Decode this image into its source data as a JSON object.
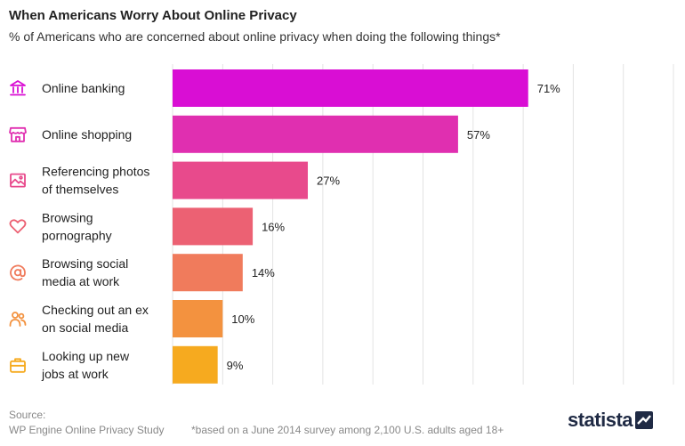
{
  "title": "When Americans Worry About Online Privacy",
  "subtitle": "% of Americans who are concerned about online privacy when doing the following things*",
  "source_label": "Source:",
  "source_text": "WP Engine Online Privacy Study",
  "footnote": "*based on a June 2014 survey among 2,100 U.S. adults aged 18+",
  "brand": "statista",
  "chart_data": {
    "type": "bar",
    "orientation": "horizontal",
    "categories": [
      [
        "Online banking"
      ],
      [
        "Online shopping"
      ],
      [
        "Referencing photos",
        "of themselves"
      ],
      [
        "Browsing",
        "pornography"
      ],
      [
        "Browsing social",
        "media at work"
      ],
      [
        "Checking out an ex",
        "on social media"
      ],
      [
        "Looking up new",
        "jobs at work"
      ]
    ],
    "values": [
      71,
      57,
      27,
      16,
      14,
      10,
      9
    ],
    "value_labels": [
      "71%",
      "57%",
      "27%",
      "16%",
      "14%",
      "10%",
      "9%"
    ],
    "icons": [
      "bank-icon",
      "store-icon",
      "photo-icon",
      "heart-icon",
      "at-sign-icon",
      "people-icon",
      "briefcase-icon"
    ],
    "colors": [
      "#d90ed4",
      "#e02fb0",
      "#e84a8c",
      "#ec6173",
      "#f07b5c",
      "#f3923f",
      "#f6aa1f"
    ],
    "xlim": [
      0,
      100
    ],
    "grid": true,
    "axis_labels_shown": false
  }
}
